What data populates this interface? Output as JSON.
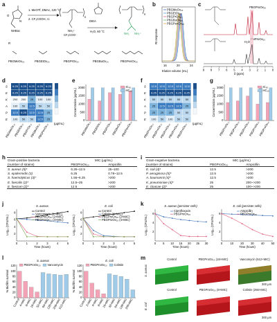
{
  "panel_labels": [
    "a",
    "b",
    "c",
    "d",
    "e",
    "f",
    "g",
    "h",
    "i",
    "j",
    "k",
    "l",
    "m"
  ],
  "scheme": {
    "step1": "1. MeOTf, DMAc, 120 °C",
    "step2": "2. CF₃COOH, r.t.",
    "reagent": "DIEA",
    "conditions": "H₂O, 60 °C",
    "boc_label": "NHBoc",
    "r_label": "R",
    "amine_label": "NH₃⁺",
    "tfa_label": "CF₃COO⁻",
    "n_label": "n",
    "polymers": [
      "PBGMeOx₂₀",
      "PBGEtOx₂₀",
      "PBGPrOx₂₀",
      "PBGBuOx₂₀",
      "PBGPenOx₂₀"
    ]
  },
  "gpc": {
    "ylabel": "RI response",
    "xlabel": "Elution volume (mL)",
    "xticks": [
      "16",
      "20",
      "24"
    ],
    "legend": [
      "PBGMeOx₂₀",
      "PBGEtOx₂₀",
      "PBGPrOx₂₀",
      "PBGBuOx₂₀",
      "PBGPenOx₂₀"
    ],
    "colors": [
      "#3b6fb6",
      "#5aa0d8",
      "#e05a7a",
      "#6cbf6c",
      "#e8a64a"
    ]
  },
  "nmr": {
    "title": "PBGProOx₂₀",
    "subtitle": "PNProOx₂₀",
    "xlabel": "δ (ppm)",
    "xticks": [
      "9",
      "8",
      "7",
      "6",
      "5",
      "4",
      "3",
      "2",
      "1",
      "0"
    ],
    "peak_label": "H₂O"
  },
  "heatmap_d": {
    "rows": [
      "S",
      "E",
      "K",
      "A",
      "P",
      "E"
    ],
    "cols": [
      "PBGMeOx₂₀",
      "PBGEtOx₂₀",
      "PBGPrOx₂₀",
      "PBGBuOx₂₀",
      "PBGPenOx₂₀"
    ],
    "values": [
      [
        "6.25",
        "6.25",
        "6.25",
        "6.25",
        "6.25"
      ],
      [
        "6.25",
        "6.25",
        "6.25",
        "6.25",
        "6.25"
      ],
      [
        "200",
        "200",
        "25",
        "100",
        "100"
      ],
      [
        "100",
        "50",
        "12.5",
        "50",
        "50"
      ],
      [
        "12.5",
        "6.25",
        "12.5",
        "12.5",
        "25"
      ],
      [
        "100",
        "50",
        "50",
        "12.5",
        "25"
      ]
    ],
    "unit": "(μg/mL)"
  },
  "heatmap_f": {
    "rows": [
      "S",
      "E",
      "K",
      "A",
      "P",
      "E"
    ],
    "cols": [
      "PBGProOx₁₀",
      "PBGProOx₂₀",
      "PBGProOx₃₀",
      "PBGProOx₄₀",
      "PBGProOx₅₀"
    ],
    "values": [
      [
        "12.5",
        "12.5",
        "12.5",
        "12.5",
        "12.5"
      ],
      [
        "6.25",
        "6.25",
        "6.25",
        "6.25",
        "6.25"
      ],
      [
        "50",
        "50",
        "50",
        "50",
        "50"
      ],
      [
        "25",
        "12.5",
        "12.5",
        "12.5",
        "25"
      ],
      [
        "25",
        "25",
        "25",
        "50",
        "50"
      ],
      [
        "100",
        "50",
        "100",
        "50",
        "50"
      ]
    ],
    "unit": "(μg/mL)"
  },
  "chart_data": [
    {
      "panel": "e",
      "type": "bar",
      "categories": [
        "PBGMeOx₂₀",
        "PBGEtOx₂₀",
        "PBGPrOx₂₀",
        "PBGBuOx₂₀",
        "PBGPenOx₂₀"
      ],
      "series": [
        {
          "name": "IC₅₀",
          "values": [
            1300,
            1200,
            1700,
            1600,
            1800
          ]
        },
        {
          "name": "HC₁₀",
          "values": [
            2000,
            2000,
            2000,
            2000,
            2000
          ]
        }
      ],
      "ylabel": "Concentration (μg/mL)",
      "yticks": [
        "0",
        "500",
        "1000",
        "1500",
        "2000"
      ],
      "ylim": [
        0,
        2200
      ],
      "colors": [
        "#f3a3b5",
        "#9fcbe8"
      ]
    },
    {
      "panel": "g",
      "type": "bar",
      "categories": [
        "PBGProOx₁₀",
        "PBGProOx₂₀",
        "PBGProOx₃₀",
        "PBGProOx₄₀",
        "PBGProOx₅₀"
      ],
      "series": [
        {
          "name": "IC₅₀",
          "values": [
            1100,
            1200,
            1500,
            1000,
            1100
          ]
        },
        {
          "name": "HC₁₀",
          "values": [
            2000,
            2000,
            2000,
            2000,
            2000
          ]
        }
      ],
      "ylabel": "Concentration (μg/mL)",
      "yticks": [
        "0",
        "500",
        "1000",
        "1500",
        "2000"
      ],
      "ylim": [
        0,
        2200
      ],
      "colors": [
        "#f3a3b5",
        "#9fcbe8"
      ]
    },
    {
      "panel": "j-left",
      "type": "line",
      "title": "S. aureus",
      "xlabel": "Time (hours)",
      "ylabel": "Log₁₀ (CFU/mL)",
      "x": [
        0,
        1,
        2,
        3,
        4,
        5
      ],
      "xticks": [
        "0",
        "1",
        "2",
        "3",
        "4",
        "5"
      ],
      "yticks": [
        "2",
        "4",
        "6",
        "8"
      ],
      "ylim": [
        0,
        9
      ],
      "series": [
        {
          "name": "Control",
          "values": [
            6.3,
            6.5,
            6.9,
            7.4,
            7.9,
            8.3
          ]
        },
        {
          "name": "Vancomycin (4×MIC)",
          "values": [
            6.3,
            6.1,
            5.9,
            5.7,
            5.4,
            5.1
          ]
        },
        {
          "name": "PBGProOx₂₀ (2×MIC)",
          "values": [
            6.3,
            2.5,
            1.3,
            1.2,
            1.2,
            1.2
          ]
        },
        {
          "name": "PBGProOx₂₀ (4×MIC)",
          "values": [
            6.3,
            1.2,
            1.2,
            1.2,
            1.2,
            1.2
          ]
        }
      ]
    },
    {
      "panel": "j-right",
      "type": "line",
      "title": "E. coli",
      "xlabel": "Time (hours)",
      "ylabel": "Log₁₀ (CFU/mL)",
      "x": [
        0,
        1,
        2,
        3,
        4,
        5
      ],
      "xticks": [
        "0",
        "1",
        "2",
        "3",
        "4",
        "5"
      ],
      "yticks": [
        "2",
        "4",
        "6",
        "8"
      ],
      "ylim": [
        0,
        9
      ],
      "series": [
        {
          "name": "Control",
          "values": [
            6.4,
            6.8,
            7.2,
            7.6,
            8.0,
            8.4
          ]
        },
        {
          "name": "Colistin (4×MIC)",
          "values": [
            6.4,
            3.0,
            1.5,
            1.3,
            1.2,
            1.2
          ]
        },
        {
          "name": "PBGProOx₂₀ (2×MIC)",
          "values": [
            6.4,
            2.0,
            1.2,
            1.2,
            1.2,
            1.2
          ]
        },
        {
          "name": "PBGProOx₂₀ (4×MIC)",
          "values": [
            6.4,
            1.2,
            1.2,
            1.2,
            1.2,
            1.2
          ]
        }
      ]
    },
    {
      "panel": "k-left",
      "type": "line",
      "title": "S. aureus (persister cells)",
      "xlabel": "Time (hours)",
      "ylabel": "Log₁₀ (CFU/mL)",
      "x": [
        0,
        5,
        10,
        15,
        20,
        25,
        30
      ],
      "xticks": [
        "0",
        "5",
        "10",
        "15",
        "20",
        "25",
        "30"
      ],
      "yticks": [
        "2",
        "4",
        "6"
      ],
      "ylim": [
        0,
        7
      ],
      "series": [
        {
          "name": "Ciprofloxacin",
          "values": [
            6.0,
            5.3,
            5.0,
            4.7,
            4.5,
            4.3,
            4.2
          ]
        },
        {
          "name": "PBGProOx₂₀",
          "values": [
            6.0,
            3.8,
            2.5,
            1.2,
            1.0,
            1.0,
            1.0
          ]
        }
      ]
    },
    {
      "panel": "k-right",
      "type": "line",
      "title": "E. coli (persister cells)",
      "xlabel": "Time (hours)",
      "ylabel": "Log₁₀ (CFU/mL)",
      "x": [
        0,
        10,
        20,
        30,
        40,
        50
      ],
      "xticks": [
        "0",
        "10",
        "20",
        "30",
        "40",
        "50"
      ],
      "yticks": [
        "2",
        "4",
        "6"
      ],
      "ylim": [
        0,
        7
      ],
      "series": [
        {
          "name": "Ampicillin",
          "values": [
            6.0,
            5.9,
            5.8,
            5.7,
            5.6,
            5.5
          ]
        },
        {
          "name": "PBGProOx₂₀",
          "values": [
            6.0,
            5.0,
            3.8,
            2.5,
            1.5,
            1.0
          ]
        }
      ]
    },
    {
      "panel": "l-left",
      "type": "bar",
      "title": "S. aureus",
      "ylabel": "% Biofilm survival",
      "categories": [
        "Control",
        "4×MIC",
        "8×MIC",
        "16×MIC",
        "32×MIC",
        "64×MIC",
        "128×MIC",
        "256×MIC",
        "512×MIC"
      ],
      "yticks": [
        "0",
        "20",
        "40",
        "60",
        "80",
        "100",
        "120"
      ],
      "ylim": [
        0,
        125
      ],
      "series": [
        {
          "name": "PBGProOx₂₀",
          "values": [
            100,
            62,
            40,
            22,
            null,
            null,
            null,
            null,
            null
          ]
        },
        {
          "name": "Vancomycin",
          "values": [
            null,
            null,
            null,
            null,
            95,
            90,
            88,
            85,
            88
          ]
        }
      ],
      "colors": [
        "#f3a3b5",
        "#9fcbe8"
      ]
    },
    {
      "panel": "l-right",
      "type": "bar",
      "title": "E. coli",
      "ylabel": "% Biofilm survival",
      "categories": [
        "Control",
        "2×MIC",
        "4×MIC",
        "8×MIC",
        "16×MIC",
        "32×MIC",
        "64×MIC",
        "128×MIC",
        "256×MIC"
      ],
      "yticks": [
        "0",
        "20",
        "40",
        "60",
        "80",
        "100",
        "120"
      ],
      "ylim": [
        0,
        125
      ],
      "series": [
        {
          "name": "PBGProOx₂₀",
          "values": [
            100,
            55,
            30,
            15,
            null,
            null,
            null,
            null,
            null
          ]
        },
        {
          "name": "Colistin",
          "values": [
            null,
            null,
            null,
            null,
            90,
            85,
            80,
            70,
            30
          ]
        }
      ],
      "colors": [
        "#f3a3b5",
        "#9fcbe8"
      ]
    }
  ],
  "table_h": {
    "header_col1": "Gram-positive bacteria",
    "header_col1b": "(number of strains)",
    "header_group": "MIC (μg/mL)",
    "header_col2": "PBGProOx₂₀",
    "header_col3": "Ampicillin",
    "rows": [
      [
        "S. aureus (5)*",
        "6.25~12.5",
        "25~100"
      ],
      [
        "S. epidermidis (3)",
        "6.25",
        "0.78~12.5"
      ],
      [
        "S. haemolyticus (3)*",
        "1.56~6.25",
        ">200"
      ],
      [
        "E. faecalis (2)*",
        "12.5~25",
        ">200"
      ],
      [
        "E. faecium (2)*",
        "12.5",
        ">200"
      ]
    ]
  },
  "table_i": {
    "header_col1": "Gram-negative bacteria",
    "header_col1b": "(number of strains)",
    "header_group": "MIC (μg/mL)",
    "header_col2": "PBGProOx₂₀",
    "header_col3": "Ampicillin",
    "rows": [
      [
        "E. coli (4)*",
        "12.5",
        ">200"
      ],
      [
        "P. aeruginosa (5)*",
        "12.5",
        ">200"
      ],
      [
        "A. baumannii (4)*",
        "12.5",
        ">200"
      ],
      [
        "K. pneumoniae (4)*",
        "25",
        "200~>200"
      ],
      [
        "E. cloacae (2)*",
        "25",
        "100~>200"
      ]
    ]
  },
  "microscopy": {
    "columns_top": [
      "Control",
      "PBGProOx₂₀ (16×MIC)",
      "Vancomycin (512×MIC)"
    ],
    "columns_bottom": [
      "Control",
      "PBGProOx₂₀ (8×MIC)",
      "Colistin (256×MIC)"
    ],
    "row_labels": [
      "S. aureus",
      "E. coli"
    ],
    "scalebar": "300 μm"
  }
}
